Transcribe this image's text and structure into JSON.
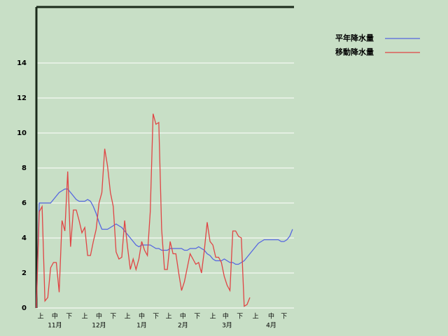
{
  "chart_data": {
    "type": "line",
    "x": [
      0,
      2,
      4,
      6,
      8,
      10,
      12,
      14,
      16,
      18,
      20,
      22,
      24,
      26,
      28,
      30,
      32,
      34,
      36,
      38,
      40,
      42,
      44,
      46,
      48,
      50,
      52,
      54,
      56,
      58,
      60,
      62,
      64,
      66,
      68,
      70,
      72,
      74,
      76,
      78,
      80,
      82,
      84,
      86,
      88,
      90,
      92,
      94,
      96,
      98,
      100,
      102,
      104,
      106,
      108,
      110,
      112,
      114,
      116,
      118,
      120,
      122,
      124,
      126,
      128,
      130,
      132,
      134,
      136,
      138,
      140,
      142,
      144,
      146,
      148,
      150,
      152,
      154,
      156,
      158,
      160,
      162,
      164,
      166,
      168,
      170,
      172,
      174,
      176,
      178,
      180
    ],
    "xlim": [
      0,
      181
    ],
    "xticks": [
      {
        "value": 3,
        "label": "上"
      },
      {
        "value": 13,
        "label": "中"
      },
      {
        "value": 23,
        "label": "下"
      },
      {
        "value": 34,
        "label": "上"
      },
      {
        "value": 44,
        "label": "中"
      },
      {
        "value": 54,
        "label": "下"
      },
      {
        "value": 64,
        "label": "上"
      },
      {
        "value": 74,
        "label": "中"
      },
      {
        "value": 84,
        "label": "下"
      },
      {
        "value": 93,
        "label": "上"
      },
      {
        "value": 103,
        "label": "中"
      },
      {
        "value": 113,
        "label": "下"
      },
      {
        "value": 124,
        "label": "上"
      },
      {
        "value": 133,
        "label": "中"
      },
      {
        "value": 143,
        "label": "下"
      },
      {
        "value": 154,
        "label": "上"
      },
      {
        "value": 165,
        "label": "中"
      },
      {
        "value": 174,
        "label": "下"
      }
    ],
    "month_labels": [
      {
        "value": 13,
        "label": "11月"
      },
      {
        "value": 44,
        "label": "12月"
      },
      {
        "value": 74,
        "label": "1月"
      },
      {
        "value": 103,
        "label": "2月"
      },
      {
        "value": 134,
        "label": "3月"
      },
      {
        "value": 165,
        "label": "4月"
      }
    ],
    "ylim": [
      0,
      17.2
    ],
    "yticks": [
      0,
      2,
      4,
      6,
      8,
      10,
      12,
      14
    ],
    "grid": true,
    "legend": "top-right",
    "series": [
      {
        "name": "平年降水量",
        "color": "#5566e0",
        "values": [
          0,
          6.0,
          6.0,
          6.0,
          6.0,
          6.0,
          6.2,
          6.4,
          6.6,
          6.7,
          6.8,
          6.8,
          6.6,
          6.4,
          6.2,
          6.1,
          6.1,
          6.1,
          6.2,
          6.1,
          5.8,
          5.4,
          4.9,
          4.5,
          4.5,
          4.5,
          4.6,
          4.7,
          4.8,
          4.7,
          4.6,
          4.4,
          4.2,
          4.0,
          3.8,
          3.6,
          3.5,
          3.6,
          3.6,
          3.6,
          3.6,
          3.5,
          3.4,
          3.4,
          3.3,
          3.3,
          3.3,
          3.4,
          3.4,
          3.4,
          3.4,
          3.4,
          3.3,
          3.3,
          3.4,
          3.4,
          3.4,
          3.5,
          3.4,
          3.3,
          3.1,
          3.0,
          2.8,
          2.7,
          2.7,
          2.7,
          2.8,
          2.7,
          2.6,
          2.6,
          2.5,
          2.5,
          2.6,
          2.7,
          2.9,
          3.1,
          3.3,
          3.5,
          3.7,
          3.8,
          3.9,
          3.9,
          3.9,
          3.9,
          3.9,
          3.9,
          3.8,
          3.8,
          3.9,
          4.1,
          4.5
        ]
      },
      {
        "name": "移動降水量",
        "color": "#e04444",
        "values": [
          0,
          5.5,
          5.8,
          0.4,
          0.6,
          2.3,
          2.6,
          2.6,
          0.9,
          5.0,
          4.4,
          7.8,
          3.5,
          5.6,
          5.6,
          5.0,
          4.3,
          4.6,
          3.0,
          3.0,
          3.8,
          4.5,
          6.0,
          6.6,
          9.1,
          8.1,
          6.6,
          5.8,
          3.2,
          2.8,
          2.9,
          5.0,
          3.5,
          2.2,
          2.8,
          2.2,
          2.8,
          3.8,
          3.3,
          3.0,
          5.5,
          11.1,
          10.5,
          10.6,
          4.5,
          2.2,
          2.2,
          3.8,
          3.1,
          3.1,
          2.0,
          1.0,
          1.5,
          2.3,
          3.1,
          2.8,
          2.5,
          2.6,
          2.0,
          3.3,
          4.9,
          3.8,
          3.6,
          2.9,
          2.9,
          2.6,
          1.8,
          1.3,
          1.0,
          4.4,
          4.4,
          4.1,
          4.0,
          0.1,
          0.2,
          0.6,
          null,
          null,
          null,
          null,
          null,
          null,
          null,
          null,
          null,
          null,
          null,
          null,
          null,
          null,
          null
        ]
      }
    ]
  }
}
